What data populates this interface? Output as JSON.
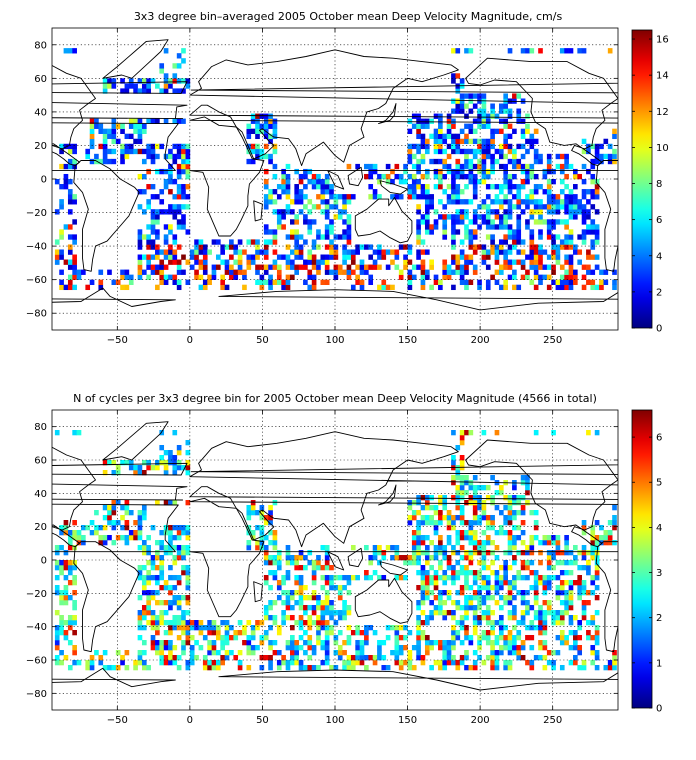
{
  "chart_data": [
    {
      "type": "heatmap",
      "title": "3x3 degree bin–averaged 2005 October mean Deep Velocity Magnitude, cm/s",
      "xlabel": "",
      "ylabel": "",
      "xlim": [
        -95,
        295
      ],
      "ylim": [
        -90,
        90
      ],
      "x_ticks": [
        -50,
        0,
        50,
        100,
        150,
        200,
        250
      ],
      "y_ticks": [
        -80,
        -60,
        -40,
        -20,
        0,
        20,
        40,
        60,
        80
      ],
      "grid": true,
      "bin_size_deg": 3,
      "colorbar": {
        "min": 0,
        "max": 16.5,
        "ticks": [
          0,
          2,
          4,
          6,
          8,
          10,
          12,
          14,
          16
        ],
        "colormap": "jet",
        "placement": "right"
      }
    },
    {
      "type": "heatmap",
      "title": "N of cycles per 3x3 degree bin for 2005 October mean Deep Velocity Magnitude (4566 in total)",
      "xlabel": "",
      "ylabel": "",
      "xlim": [
        -95,
        295
      ],
      "ylim": [
        -90,
        90
      ],
      "x_ticks": [
        -50,
        0,
        50,
        100,
        150,
        200,
        250
      ],
      "y_ticks": [
        -80,
        -60,
        -40,
        -20,
        0,
        20,
        40,
        60,
        80
      ],
      "grid": true,
      "bin_size_deg": 3,
      "total_cycles": 4566,
      "colorbar": {
        "min": 0,
        "max": 6.6,
        "ticks": [
          0,
          1,
          2,
          3,
          4,
          5,
          6
        ],
        "colormap": "jet",
        "placement": "right"
      }
    }
  ]
}
